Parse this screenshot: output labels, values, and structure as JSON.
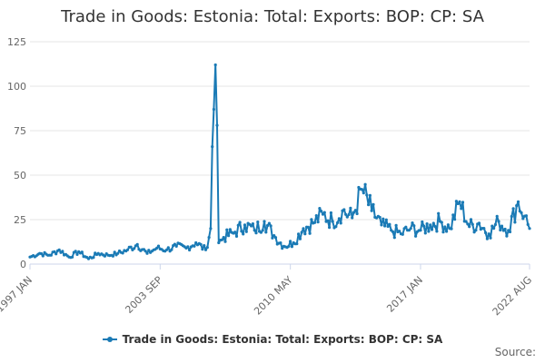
{
  "colors": {
    "series": "#1a7ab5",
    "grid": "#e6e6e6",
    "axis": "#ccd6eb",
    "tick_text": "#666666"
  },
  "source_label": "Source:",
  "chart_data": {
    "type": "line",
    "title": "Trade in Goods: Estonia: Total: Exports: BOP: CP: SA",
    "xlabel": "",
    "ylabel": "",
    "ylim": [
      0,
      125
    ],
    "yticks": [
      0,
      25,
      50,
      75,
      100,
      125
    ],
    "xticks": [
      "1997 JAN",
      "2003 SEP",
      "2010 MAY",
      "2017 JAN",
      "2022 AUG"
    ],
    "x_range": [
      "1997 JAN",
      "2022 AUG"
    ],
    "grid": true,
    "legend": "bottom",
    "series": [
      {
        "name": "Trade in Goods: Estonia: Total: Exports: BOP: CP: SA",
        "frequency": "monthly",
        "start": "1997 JAN",
        "end": "2022 AUG",
        "points": [
          [
            "1997 JAN",
            4
          ],
          [
            "1997 JUL",
            6
          ],
          [
            "1998 JAN",
            5
          ],
          [
            "1998 JUL",
            8
          ],
          [
            "1999 JAN",
            4
          ],
          [
            "1999 JUL",
            7
          ],
          [
            "2000 JAN",
            3
          ],
          [
            "2000 JUL",
            6
          ],
          [
            "2001 JAN",
            5
          ],
          [
            "2001 JUL",
            6
          ],
          [
            "2002 JAN",
            8
          ],
          [
            "2002 JUL",
            11
          ],
          [
            "2003 JAN",
            6
          ],
          [
            "2003 JUL",
            9
          ],
          [
            "2004 JAN",
            8
          ],
          [
            "2004 JUL",
            10
          ],
          [
            "2005 JAN",
            9
          ],
          [
            "2005 JUL",
            12
          ],
          [
            "2006 JAN",
            8
          ],
          [
            "2006 APR",
            20
          ],
          [
            "2006 MAY",
            66
          ],
          [
            "2006 JUN",
            87
          ],
          [
            "2006 JUL",
            112
          ],
          [
            "2006 AUG",
            78
          ],
          [
            "2006 SEP",
            12
          ],
          [
            "2006 DEC",
            15
          ],
          [
            "2007 JUL",
            18
          ],
          [
            "2008 JAN",
            22
          ],
          [
            "2008 JUL",
            19
          ],
          [
            "2009 JAN",
            24
          ],
          [
            "2009 JUL",
            16
          ],
          [
            "2010 JAN",
            10
          ],
          [
            "2010 JUL",
            12
          ],
          [
            "2011 JAN",
            20
          ],
          [
            "2011 JUL",
            23
          ],
          [
            "2012 JAN",
            28
          ],
          [
            "2012 JUL",
            24
          ],
          [
            "2013 JAN",
            30
          ],
          [
            "2013 JUL",
            26
          ],
          [
            "2014 JAN",
            42
          ],
          [
            "2014 JUL",
            30
          ],
          [
            "2015 JAN",
            22
          ],
          [
            "2015 JUL",
            19
          ],
          [
            "2016 JAN",
            17
          ],
          [
            "2016 JUL",
            20
          ],
          [
            "2017 JAN",
            19
          ],
          [
            "2017 JUL",
            22
          ],
          [
            "2018 JAN",
            24
          ],
          [
            "2018 JUL",
            20
          ],
          [
            "2019 JAN",
            35
          ],
          [
            "2019 JUL",
            21
          ],
          [
            "2020 JAN",
            23
          ],
          [
            "2020 JUL",
            17
          ],
          [
            "2021 JAN",
            24
          ],
          [
            "2021 JUL",
            19
          ],
          [
            "2022 JAN",
            35
          ],
          [
            "2022 MAY",
            27
          ],
          [
            "2022 AUG",
            20
          ]
        ]
      }
    ]
  }
}
